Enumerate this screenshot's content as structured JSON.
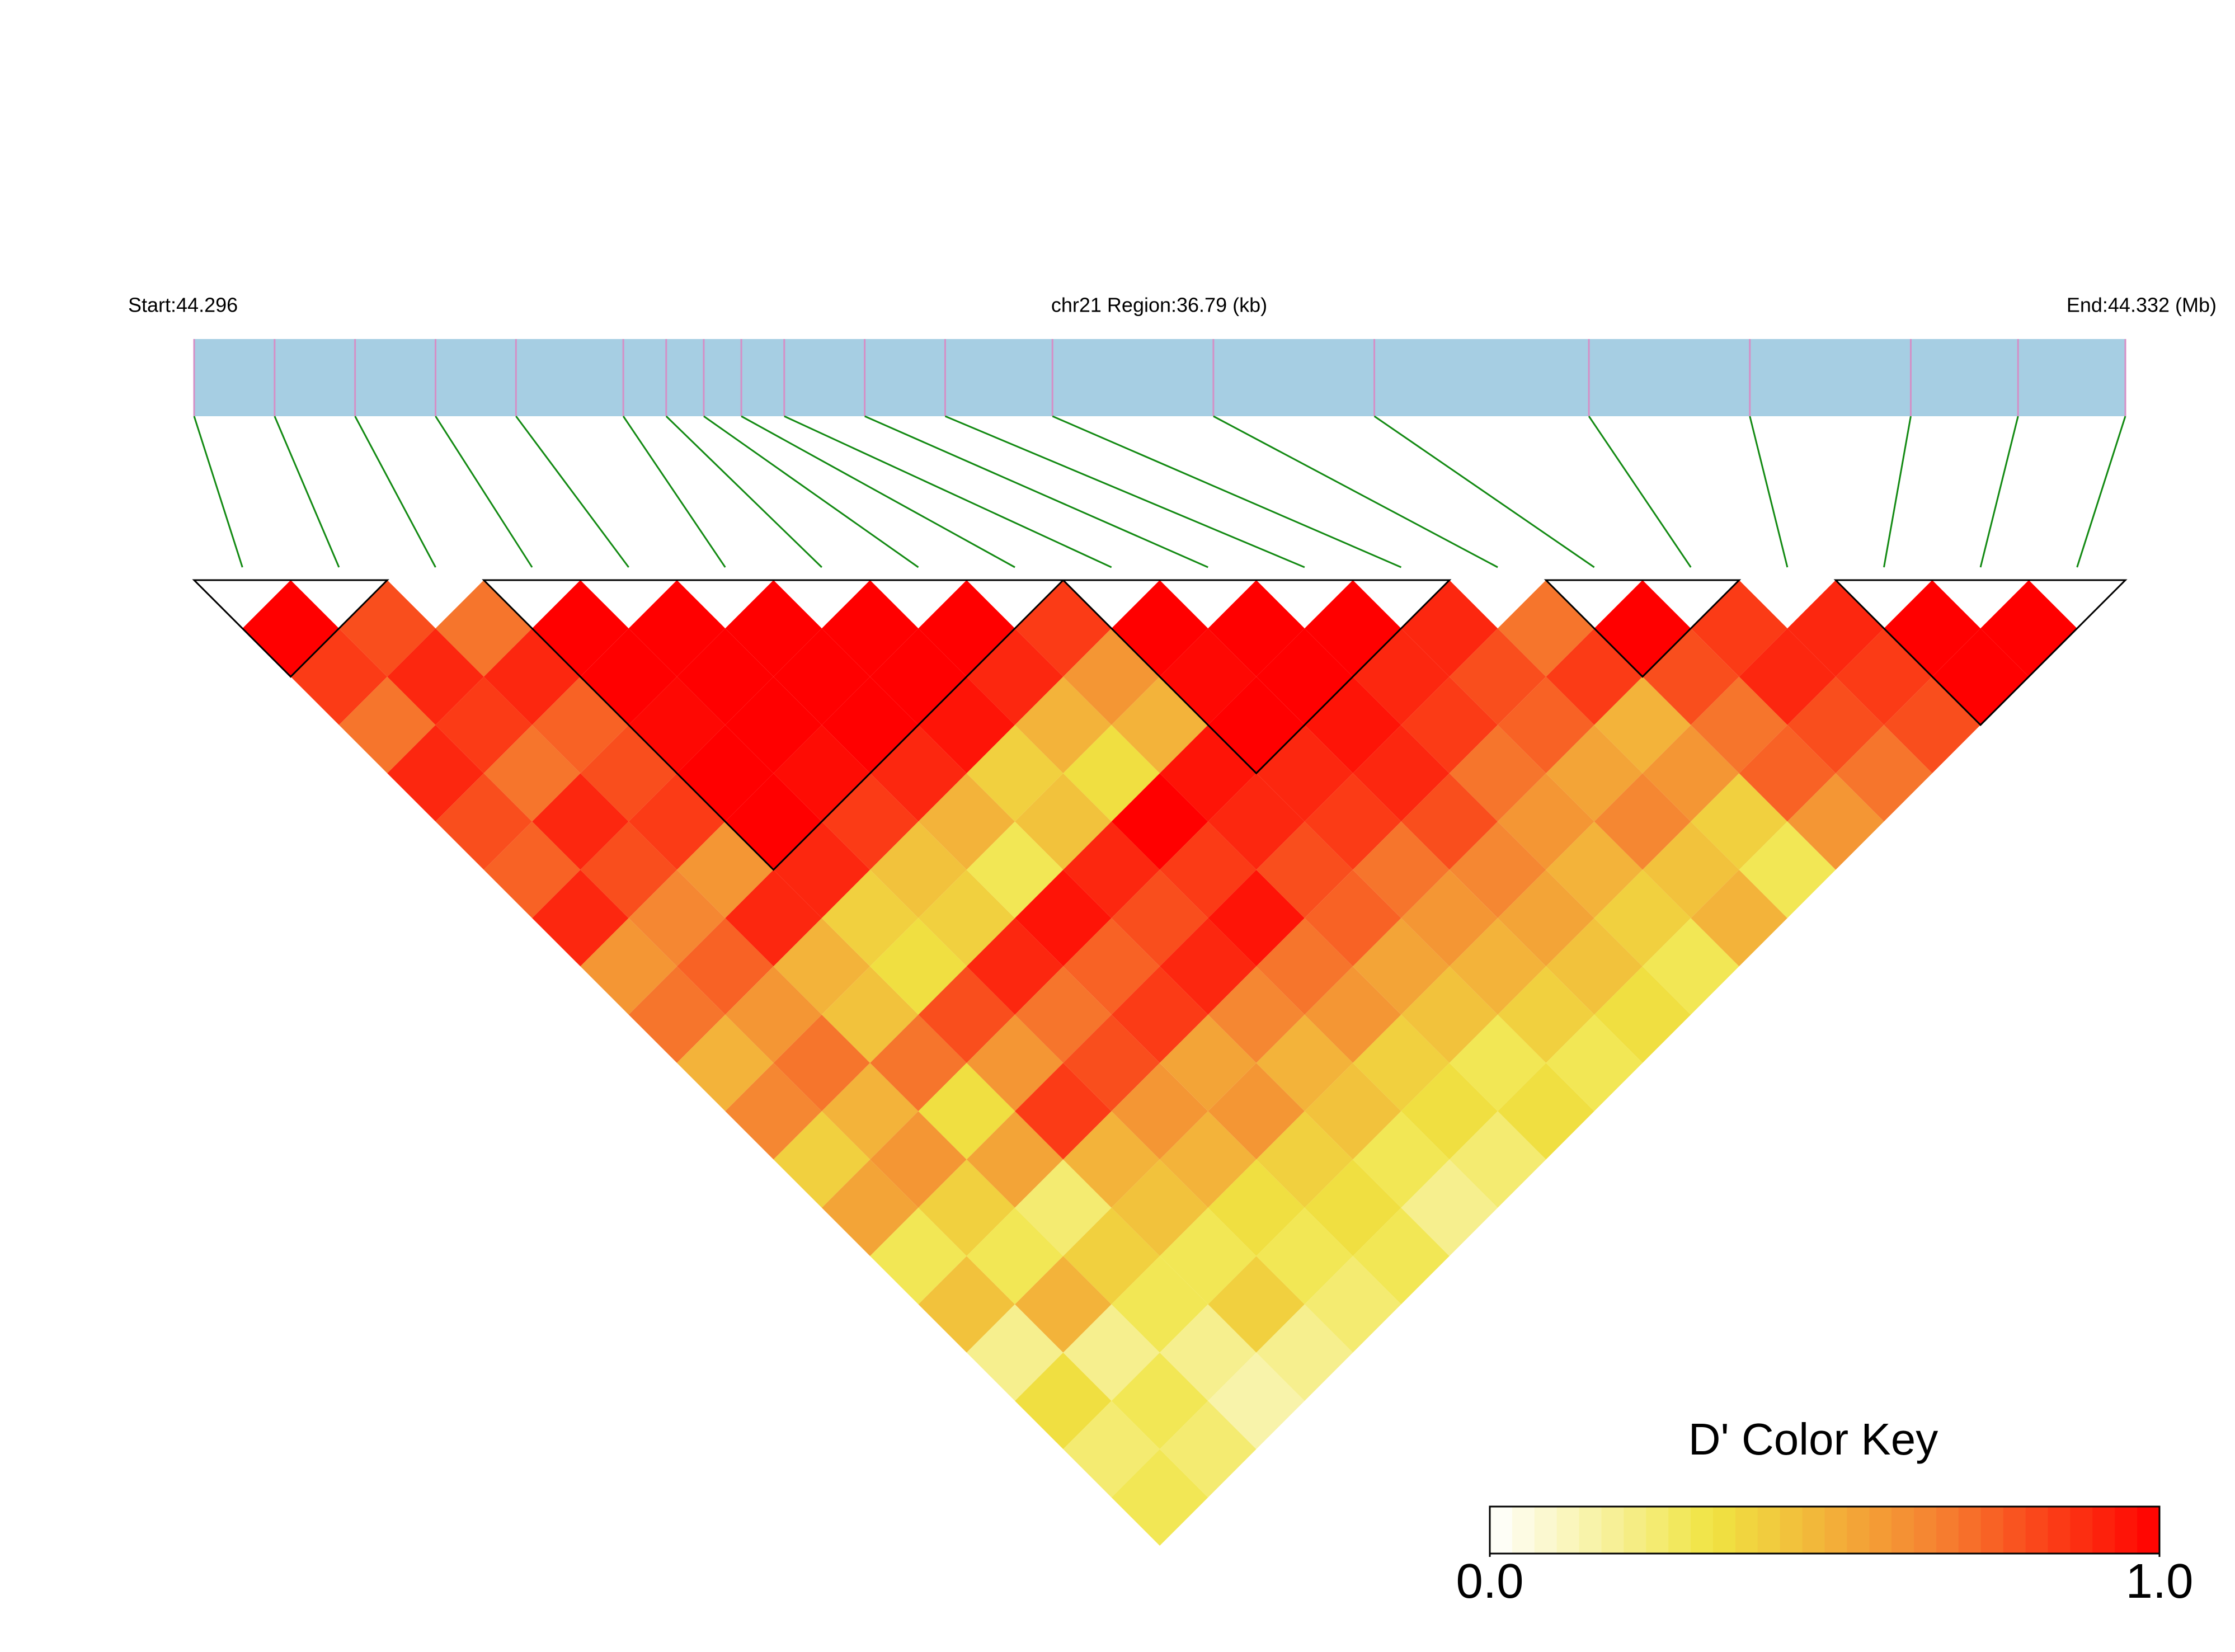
{
  "chart_data": {
    "type": "ld_heatmap",
    "start_label": "Start:44.296",
    "region_label": "chr21 Region:36.79 (kb)",
    "end_label": "End:44.332 (Mb)",
    "xlim": [
      44.296,
      44.332
    ],
    "positions": [
      44.296,
      44.2975,
      44.299,
      44.3005,
      44.302,
      44.304,
      44.3048,
      44.3055,
      44.3062,
      44.307,
      44.3085,
      44.31,
      44.312,
      44.315,
      44.318,
      44.322,
      44.325,
      44.328,
      44.33,
      44.332
    ],
    "dprime": [
      [
        1,
        0.85,
        0.7,
        0.9,
        0.8,
        0.75,
        0.9,
        0.6,
        0.7,
        0.5,
        0.65,
        0.4,
        0.55,
        0.3,
        0.45,
        0.2,
        0.35,
        0.25,
        0.3
      ],
      [
        0.8,
        0.9,
        0.85,
        0.7,
        0.9,
        0.8,
        0.65,
        0.75,
        0.6,
        0.7,
        0.5,
        0.6,
        0.4,
        0.3,
        0.5,
        0.2,
        0.3,
        0.25
      ],
      [
        0.7,
        0.9,
        0.75,
        0.8,
        0.85,
        0.6,
        0.9,
        0.5,
        0.45,
        0.7,
        0.35,
        0.55,
        0.25,
        0.4,
        0.3,
        0.2,
        0.15
      ],
      [
        1,
        1,
        0.98,
        1,
        1,
        0.9,
        0.4,
        0.35,
        0.8,
        0.6,
        0.85,
        0.5,
        0.45,
        0.3,
        0.4,
        0.2
      ],
      [
        1,
        1,
        1,
        0.97,
        0.85,
        0.45,
        0.4,
        0.9,
        0.7,
        0.8,
        0.6,
        0.5,
        0.35,
        0.3,
        0.25
      ],
      [
        1,
        1,
        1,
        0.9,
        0.5,
        0.3,
        0.95,
        0.75,
        0.85,
        0.55,
        0.6,
        0.4,
        0.35,
        0.3
      ],
      [
        1,
        1,
        0.95,
        0.4,
        0.45,
        0.9,
        0.8,
        0.9,
        0.65,
        0.5,
        0.45,
        0.3,
        0.2
      ],
      [
        1,
        0.9,
        0.5,
        0.35,
        1,
        0.85,
        0.95,
        0.7,
        0.6,
        0.4,
        0.35,
        0.25
      ],
      [
        0.85,
        0.6,
        0.5,
        0.95,
        0.9,
        0.8,
        0.75,
        0.55,
        0.45,
        0.3,
        0.35
      ],
      [
        1,
        0.98,
        1,
        0.9,
        0.85,
        0.7,
        0.6,
        0.5,
        0.4,
        0.3
      ],
      [
        1,
        1,
        0.95,
        0.9,
        0.8,
        0.65,
        0.55,
        0.45,
        0.35
      ],
      [
        1,
        0.9,
        0.85,
        0.7,
        0.6,
        0.5,
        0.4,
        0.3
      ],
      [
        0.9,
        0.8,
        0.75,
        0.55,
        0.65,
        0.45,
        0.5
      ],
      [
        0.7,
        0.85,
        0.5,
        0.6,
        0.4,
        0.3
      ],
      [
        1,
        0.8,
        0.7,
        0.75,
        0.6
      ],
      [
        0.85,
        0.9,
        0.8,
        0.7
      ],
      [
        0.9,
        0.85,
        0.8
      ],
      [
        1,
        1
      ],
      [
        1
      ]
    ],
    "blocks": [
      [
        0,
        1
      ],
      [
        3,
        8
      ],
      [
        9,
        12
      ],
      [
        14,
        15
      ],
      [
        17,
        19
      ]
    ],
    "bar_color": "#a6cee3",
    "snp_line_color": "#d58fc6",
    "connector_color": "#138a13",
    "colors": [
      "#ffffff",
      "#f0e442",
      "#f58231",
      "#ff0000"
    ],
    "color_key": {
      "title": "D' Color Key",
      "lim": [
        0,
        1
      ],
      "ticks": [
        {
          "value": 0,
          "label": "0.0"
        },
        {
          "value": 1,
          "label": "1.0"
        }
      ]
    }
  }
}
